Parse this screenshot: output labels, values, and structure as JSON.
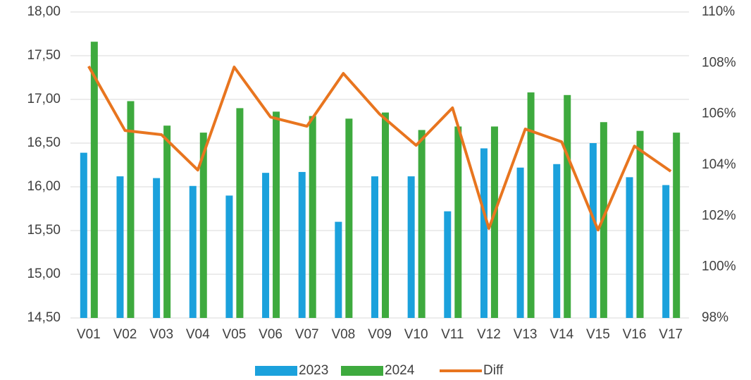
{
  "chart_data": {
    "type": "bar_line",
    "categories": [
      "V01",
      "V02",
      "V03",
      "V04",
      "V05",
      "V06",
      "V07",
      "V08",
      "V09",
      "V10",
      "V11",
      "V12",
      "V13",
      "V14",
      "V15",
      "V16",
      "V17"
    ],
    "series": [
      {
        "name": "2023",
        "color": "#1ba1dc",
        "values": [
          16.39,
          16.12,
          16.1,
          16.01,
          15.9,
          16.16,
          16.17,
          15.6,
          16.12,
          16.12,
          15.72,
          16.44,
          16.22,
          16.26,
          16.5,
          16.11,
          16.02
        ]
      },
      {
        "name": "2024",
        "color": "#3eaa3e",
        "values": [
          17.66,
          16.98,
          16.7,
          16.62,
          16.9,
          16.86,
          16.81,
          16.78,
          16.85,
          16.65,
          16.69,
          16.69,
          17.08,
          17.05,
          16.74,
          16.64,
          16.62
        ]
      },
      {
        "name": "Diff",
        "color": "#e8751f",
        "axis": "y2",
        "values": [
          107.87,
          105.35,
          105.19,
          103.8,
          107.84,
          105.88,
          105.52,
          107.59,
          105.99,
          104.77,
          106.24,
          101.51,
          105.41,
          104.91,
          101.45,
          104.74,
          103.75
        ]
      }
    ],
    "ylim": [
      14.5,
      18
    ],
    "yticks": [
      {
        "value": 14.5,
        "label": "14,50"
      },
      {
        "value": 15,
        "label": "15,00"
      },
      {
        "value": 15.5,
        "label": "15,50"
      },
      {
        "value": 16,
        "label": "16,00"
      },
      {
        "value": 16.5,
        "label": "16,50"
      },
      {
        "value": 17,
        "label": "17,00"
      },
      {
        "value": 17.5,
        "label": "17,50"
      },
      {
        "value": 18,
        "label": "18,00"
      }
    ],
    "y2lim": [
      98,
      110
    ],
    "y2ticks": [
      {
        "value": 98,
        "label": "98%"
      },
      {
        "value": 100,
        "label": "100%"
      },
      {
        "value": 102,
        "label": "102%"
      },
      {
        "value": 104,
        "label": "104%"
      },
      {
        "value": 106,
        "label": "106%"
      },
      {
        "value": 108,
        "label": "108%"
      },
      {
        "value": 110,
        "label": "110%"
      }
    ],
    "grid": true,
    "legend": "bottom"
  }
}
